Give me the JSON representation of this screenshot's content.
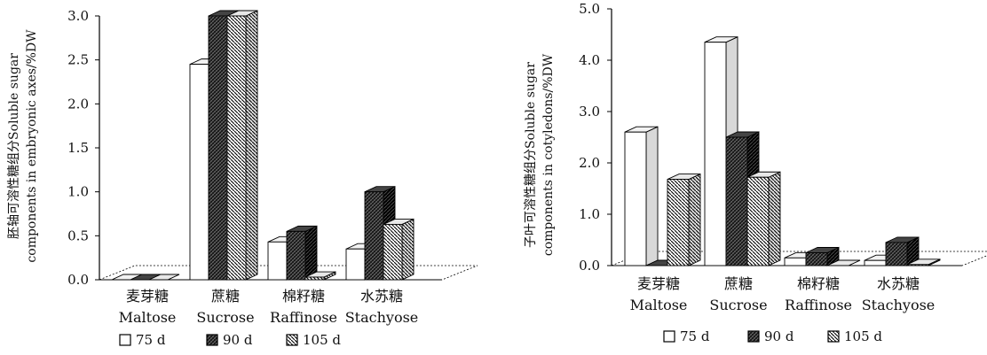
{
  "chart_data": [
    {
      "type": "bar",
      "ylabel": "胚轴可溶性糖组分Soluble sugar components in embryonic axes/%DW",
      "ylabel_lines": [
        "胚轴可溶性糖组分Soluble  sugar",
        "components in embryonic axes/%DW"
      ],
      "ylim": [
        0,
        3.0
      ],
      "yticks": [
        "0.0",
        "0.5",
        "1.0",
        "1.5",
        "2.0",
        "2.5",
        "3.0"
      ],
      "categories": [
        "麦芽糖 Maltose",
        "蔗糖 Sucrose",
        "棉籽糖 Raffinose",
        "水苏糖 Stachyose"
      ],
      "category_cn": [
        "麦芽糖",
        "蔗糖",
        "棉籽糖",
        "水苏糖"
      ],
      "category_en": [
        "Maltose",
        "Sucrose",
        "Raffinose",
        "Stachyose"
      ],
      "series": [
        {
          "name": "75 d",
          "values": [
            0.0,
            2.45,
            0.43,
            0.35
          ]
        },
        {
          "name": "90 d",
          "values": [
            0.0,
            3.0,
            0.55,
            1.0
          ]
        },
        {
          "name": "105 d",
          "values": [
            0.0,
            3.0,
            0.03,
            0.63
          ]
        }
      ],
      "legend_labels": [
        "75 d",
        "90 d",
        "105 d"
      ],
      "legend_position": "bottom",
      "grid": false
    },
    {
      "type": "bar",
      "ylabel": "子叶可溶性糖组分Soluble sugar components in cotyledons/%DW",
      "ylabel_lines": [
        "子叶可溶性糖组分Soluble sugar",
        "components in cotyledons/%DW"
      ],
      "ylim": [
        0,
        5.0
      ],
      "yticks": [
        "0.0",
        "1.0",
        "2.0",
        "3.0",
        "4.0",
        "5.0"
      ],
      "categories": [
        "麦芽糖 Maltose",
        "蔗糖 Sucrose",
        "棉籽糖 Raffinose",
        "水苏糖 Stachyose"
      ],
      "category_cn": [
        "麦芽糖",
        "蔗糖",
        "棉籽糖",
        "水苏糖"
      ],
      "category_en": [
        "Maltose",
        "Sucrose",
        "Raffinose",
        "Stachyose"
      ],
      "series": [
        {
          "name": "75 d",
          "values": [
            2.6,
            4.35,
            0.15,
            0.1
          ]
        },
        {
          "name": "90 d",
          "values": [
            0.0,
            2.5,
            0.25,
            0.45
          ]
        },
        {
          "name": "105 d",
          "values": [
            1.68,
            1.72,
            0.0,
            0.02
          ]
        }
      ],
      "legend_labels": [
        "75 d",
        "90 d",
        "105 d"
      ],
      "legend_position": "bottom",
      "grid": false
    }
  ],
  "colors": {
    "s75": "#ffffff",
    "s90": "#1a1a1a",
    "s105": "#d9d9d9",
    "line": "#000000"
  }
}
